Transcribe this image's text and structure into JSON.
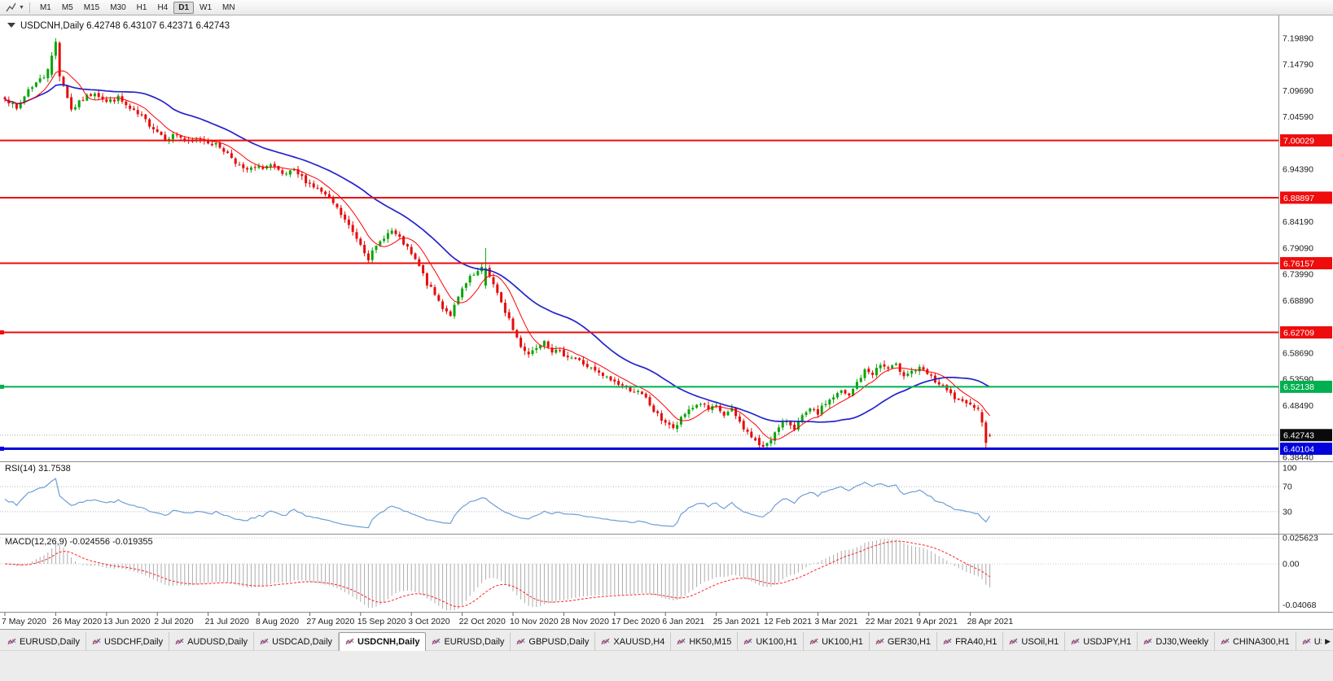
{
  "toolbar": {
    "timeframes": [
      "M1",
      "M5",
      "M15",
      "M30",
      "H1",
      "H4",
      "D1",
      "W1",
      "MN"
    ],
    "active_timeframe": "D1"
  },
  "chart": {
    "title": "USDCNH,Daily",
    "open": "6.42748",
    "high": "6.43107",
    "low": "6.42371",
    "close": "6.42743"
  },
  "price_axis": {
    "ticks": [
      "7.19890",
      "7.14790",
      "7.09690",
      "7.04590",
      "6.94390",
      "6.84190",
      "6.79090",
      "6.73990",
      "6.68890",
      "6.58690",
      "6.53590",
      "6.48490",
      "6.38440"
    ],
    "current_price": "6.42743"
  },
  "hlines": [
    {
      "price": "7.00029",
      "value": 7.00029,
      "color": "#ee0c0c",
      "width": 2,
      "anchor": false
    },
    {
      "price": "6.88897",
      "value": 6.88897,
      "color": "#ee0c0c",
      "width": 2,
      "anchor": false
    },
    {
      "price": "6.76157",
      "value": 6.76157,
      "color": "#ee0c0c",
      "width": 2,
      "anchor": false
    },
    {
      "price": "6.62709",
      "value": 6.62709,
      "color": "#ee0c0c",
      "width": 2,
      "anchor": true
    },
    {
      "price": "6.52138",
      "value": 6.52138,
      "color": "#00b050",
      "width": 2,
      "anchor": true
    },
    {
      "price": "6.40104",
      "value": 6.40104,
      "color": "#0202dd",
      "width": 3,
      "anchor": true
    }
  ],
  "rsi": {
    "label": "RSI(14) 31.7538",
    "value": 31.7538,
    "levels": [
      {
        "text": "100",
        "v": 100,
        "line": false
      },
      {
        "text": "70",
        "v": 70,
        "line": true
      },
      {
        "text": "30",
        "v": 30,
        "line": true
      }
    ]
  },
  "macd": {
    "label": "MACD(12,26,9) -0.024556 -0.019355",
    "main": -0.024556,
    "signal": -0.019355,
    "levels": [
      {
        "text": "0.025623",
        "v": 0.025623,
        "line": true
      },
      {
        "text": "0.00",
        "v": 0,
        "line": true
      },
      {
        "text": "-0.04068",
        "v": -0.04068,
        "line": false
      }
    ]
  },
  "dates": [
    {
      "text": "7 May 2020",
      "i": 0
    },
    {
      "text": "26 May 2020",
      "i": 13
    },
    {
      "text": "13 Jun 2020",
      "i": 26
    },
    {
      "text": "2 Jul 2020",
      "i": 39
    },
    {
      "text": "21 Jul 2020",
      "i": 52
    },
    {
      "text": "8 Aug 2020",
      "i": 65
    },
    {
      "text": "27 Aug 2020",
      "i": 78
    },
    {
      "text": "15 Sep 2020",
      "i": 91
    },
    {
      "text": "3 Oct 2020",
      "i": 104
    },
    {
      "text": "22 Oct 2020",
      "i": 117
    },
    {
      "text": "10 Nov 2020",
      "i": 130
    },
    {
      "text": "28 Nov 2020",
      "i": 143
    },
    {
      "text": "17 Dec 2020",
      "i": 156
    },
    {
      "text": "6 Jan 2021",
      "i": 169
    },
    {
      "text": "25 Jan 2021",
      "i": 182
    },
    {
      "text": "12 Feb 2021",
      "i": 195
    },
    {
      "text": "3 Mar 2021",
      "i": 208
    },
    {
      "text": "22 Mar 2021",
      "i": 221
    },
    {
      "text": "9 Apr 2021",
      "i": 234
    },
    {
      "text": "28 Apr 2021",
      "i": 247
    }
  ],
  "tabs": [
    {
      "label": "EURUSD,Daily",
      "active": false
    },
    {
      "label": "USDCHF,Daily",
      "active": false
    },
    {
      "label": "AUDUSD,Daily",
      "active": false
    },
    {
      "label": "USDCAD,Daily",
      "active": false
    },
    {
      "label": "USDCNH,Daily",
      "active": true
    },
    {
      "label": "EURUSD,Daily",
      "active": false
    },
    {
      "label": "GBPUSD,Daily",
      "active": false
    },
    {
      "label": "XAUUSD,H4",
      "active": false
    },
    {
      "label": "HK50,M15",
      "active": false
    },
    {
      "label": "UK100,H1",
      "active": false
    },
    {
      "label": "UK100,H1",
      "active": false
    },
    {
      "label": "GER30,H1",
      "active": false
    },
    {
      "label": "FRA40,H1",
      "active": false
    },
    {
      "label": "USOil,H1",
      "active": false
    },
    {
      "label": "USDJPY,H1",
      "active": false
    },
    {
      "label": "DJ30,Weekly",
      "active": false
    },
    {
      "label": "CHINA300,H1",
      "active": false
    },
    {
      "label": "USC",
      "active": false
    }
  ],
  "colors": {
    "up": "#0aa50a",
    "down": "#e60c0c",
    "rsi_line": "#6d9ed6",
    "macd_hist": "#ababab",
    "macd_signal": "#ff2222",
    "current_line": "#a8a8a8",
    "current_badge": "#0a0a0a"
  },
  "chart_data": {
    "type": "candlestick",
    "symbol": "USDCNH",
    "timeframe": "Daily",
    "current_ohlc": {
      "open": 6.42748,
      "high": 6.43107,
      "low": 6.42371,
      "close": 6.42743
    },
    "current_close": 6.42743,
    "bars": 253,
    "bar_step": 4.8,
    "seed": 7,
    "noise": 0.01,
    "y_top": 7.1989,
    "y_bottom": 6.3844,
    "rsi_scale": [
      0,
      100
    ],
    "macd_scale": [
      -0.04068,
      0.025623
    ],
    "close_anchors": [
      [
        0,
        7.085
      ],
      [
        3,
        7.06
      ],
      [
        6,
        7.1
      ],
      [
        10,
        7.125
      ],
      [
        12,
        7.16
      ],
      [
        14,
        7.13
      ],
      [
        16,
        7.085
      ],
      [
        17,
        7.06
      ],
      [
        20,
        7.08
      ],
      [
        23,
        7.095
      ],
      [
        26,
        7.075
      ],
      [
        29,
        7.083
      ],
      [
        32,
        7.06
      ],
      [
        35,
        7.045
      ],
      [
        38,
        7.025
      ],
      [
        41,
        7.005
      ],
      [
        44,
        7.012
      ],
      [
        47,
        6.995
      ],
      [
        50,
        7.003
      ],
      [
        52,
        6.998
      ],
      [
        55,
        6.988
      ],
      [
        58,
        6.968
      ],
      [
        61,
        6.942
      ],
      [
        65,
        6.947
      ],
      [
        68,
        6.952
      ],
      [
        71,
        6.932
      ],
      [
        74,
        6.94
      ],
      [
        78,
        6.916
      ],
      [
        81,
        6.9
      ],
      [
        84,
        6.878
      ],
      [
        87,
        6.845
      ],
      [
        89,
        6.822
      ],
      [
        91,
        6.8
      ],
      [
        93,
        6.772
      ],
      [
        95,
        6.792
      ],
      [
        97,
        6.814
      ],
      [
        99,
        6.824
      ],
      [
        102,
        6.8
      ],
      [
        104,
        6.778
      ],
      [
        106,
        6.755
      ],
      [
        108,
        6.722
      ],
      [
        110,
        6.7
      ],
      [
        112,
        6.676
      ],
      [
        114,
        6.662
      ],
      [
        116,
        6.693
      ],
      [
        117,
        6.71
      ],
      [
        119,
        6.732
      ],
      [
        121,
        6.744
      ],
      [
        123,
        6.756
      ],
      [
        125,
        6.72
      ],
      [
        127,
        6.682
      ],
      [
        129,
        6.654
      ],
      [
        130,
        6.632
      ],
      [
        132,
        6.602
      ],
      [
        134,
        6.585
      ],
      [
        136,
        6.6
      ],
      [
        138,
        6.614
      ],
      [
        140,
        6.592
      ],
      [
        143,
        6.585
      ],
      [
        146,
        6.576
      ],
      [
        149,
        6.561
      ],
      [
        152,
        6.546
      ],
      [
        156,
        6.531
      ],
      [
        159,
        6.52
      ],
      [
        162,
        6.51
      ],
      [
        164,
        6.498
      ],
      [
        166,
        6.474
      ],
      [
        168,
        6.458
      ],
      [
        170,
        6.448
      ],
      [
        171,
        6.438
      ],
      [
        173,
        6.458
      ],
      [
        175,
        6.478
      ],
      [
        178,
        6.49
      ],
      [
        180,
        6.476
      ],
      [
        182,
        6.482
      ],
      [
        184,
        6.466
      ],
      [
        186,
        6.476
      ],
      [
        188,
        6.452
      ],
      [
        190,
        6.432
      ],
      [
        192,
        6.416
      ],
      [
        194,
        6.406
      ],
      [
        196,
        6.422
      ],
      [
        198,
        6.44
      ],
      [
        200,
        6.456
      ],
      [
        202,
        6.442
      ],
      [
        204,
        6.462
      ],
      [
        206,
        6.476
      ],
      [
        208,
        6.47
      ],
      [
        210,
        6.49
      ],
      [
        212,
        6.502
      ],
      [
        214,
        6.512
      ],
      [
        216,
        6.502
      ],
      [
        218,
        6.53
      ],
      [
        220,
        6.552
      ],
      [
        222,
        6.548
      ],
      [
        224,
        6.564
      ],
      [
        226,
        6.556
      ],
      [
        228,
        6.562
      ],
      [
        230,
        6.546
      ],
      [
        232,
        6.552
      ],
      [
        234,
        6.556
      ],
      [
        236,
        6.546
      ],
      [
        238,
        6.532
      ],
      [
        240,
        6.52
      ],
      [
        242,
        6.506
      ],
      [
        244,
        6.492
      ],
      [
        246,
        6.486
      ],
      [
        247,
        6.492
      ],
      [
        249,
        6.476
      ],
      [
        250,
        6.456
      ],
      [
        251,
        6.418
      ],
      [
        252,
        6.4274
      ]
    ],
    "overrides": {
      "12": [
        7.128,
        7.172,
        7.122,
        7.165
      ],
      "13": [
        7.165,
        7.1989,
        7.158,
        7.192
      ],
      "14": [
        7.19,
        7.193,
        7.115,
        7.125
      ],
      "123": [
        6.718,
        6.791,
        6.712,
        6.752
      ],
      "193": [
        6.422,
        6.428,
        6.4015,
        6.408
      ],
      "250": [
        6.472,
        6.478,
        6.444,
        6.452
      ],
      "251": [
        6.452,
        6.456,
        6.401,
        6.4125
      ],
      "252": [
        6.42748,
        6.43107,
        6.42371,
        6.42743
      ]
    },
    "ma_fast": {
      "period": 8,
      "color": "#ff0000"
    },
    "ma_slow": {
      "period": 30,
      "color": "#2323cc"
    }
  }
}
